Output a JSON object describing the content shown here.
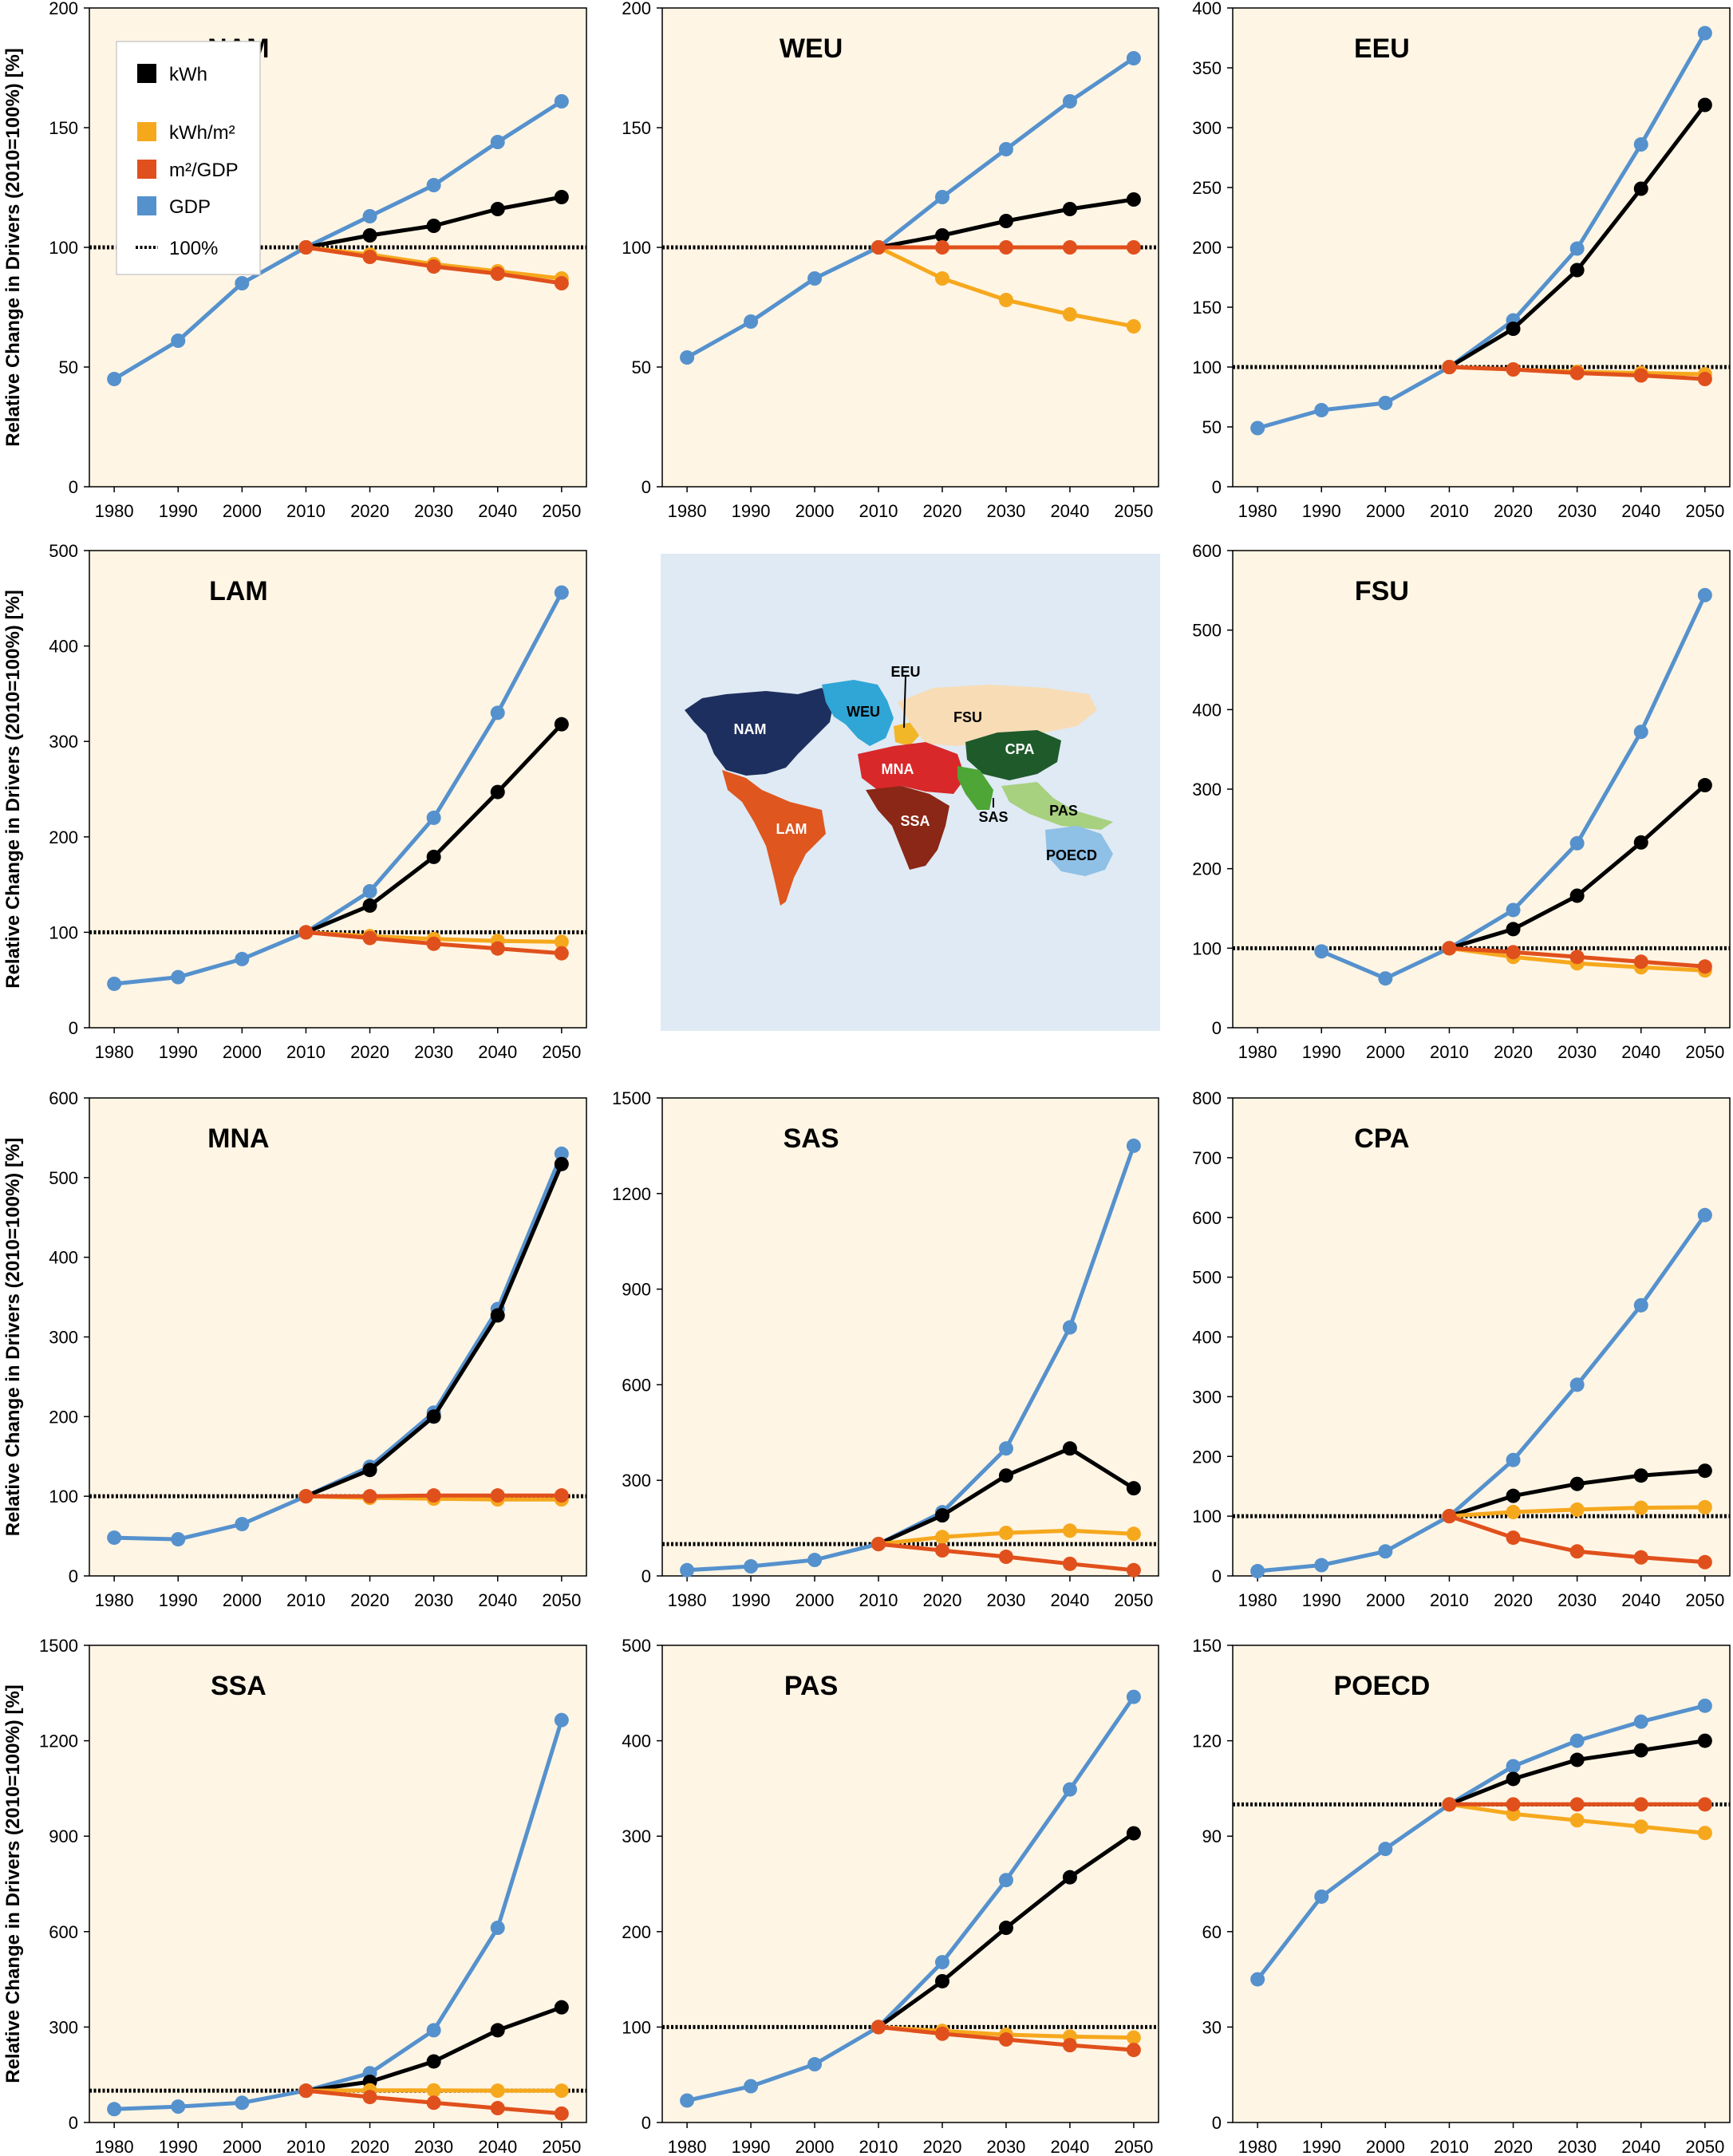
{
  "figure": {
    "ylabel": "Relative Change in Drivers (2010=100%) [%]",
    "legend": [
      {
        "label": "kWh",
        "color": "#000000",
        "kind": "marker"
      },
      {
        "label": "kWh/m²",
        "color": "#f6a81d",
        "kind": "marker"
      },
      {
        "label": "m²/GDP",
        "color": "#e0501c",
        "kind": "marker"
      },
      {
        "label": "GDP",
        "color": "#5591cd",
        "kind": "marker"
      },
      {
        "label": "100%",
        "color": "#000000",
        "kind": "dotted"
      }
    ],
    "colors": {
      "kWh": "#000000",
      "kWh_m2": "#f6a81d",
      "m2_GDP": "#e0501c",
      "GDP": "#5591cd",
      "plot_bg": "#fff5e4",
      "map_ocean": "#dfeaf4"
    },
    "map": {
      "regions": [
        {
          "label": "NAM",
          "color": "#1d2f5f",
          "text": "#ffffff"
        },
        {
          "label": "WEU",
          "color": "#2fa6d6",
          "text": "#000000"
        },
        {
          "label": "EEU",
          "color": "#f2b629",
          "text": "#000000"
        },
        {
          "label": "FSU",
          "color": "#f8dcb6",
          "text": "#000000"
        },
        {
          "label": "CPA",
          "color": "#1f5a2b",
          "text": "#ffffff"
        },
        {
          "label": "MNA",
          "color": "#d8282a",
          "text": "#ffffff"
        },
        {
          "label": "SAS",
          "color": "#4da635",
          "text": "#000000"
        },
        {
          "label": "PAS",
          "color": "#a7d07f",
          "text": "#000000"
        },
        {
          "label": "LAM",
          "color": "#df561f",
          "text": "#ffffff"
        },
        {
          "label": "SSA",
          "color": "#8a2716",
          "text": "#ffffff"
        },
        {
          "label": "POECD",
          "color": "#8fc0e6",
          "text": "#000000"
        }
      ]
    }
  },
  "chart_data": [
    {
      "type": "line",
      "title": "NAM",
      "ylim": [
        0,
        200
      ],
      "yticks": [
        0,
        50,
        100,
        150,
        200
      ],
      "categories": [
        1980,
        1990,
        2000,
        2010,
        2020,
        2030,
        2040,
        2050
      ],
      "series": [
        {
          "name": "GDP",
          "values": [
            45,
            61,
            85,
            100,
            113,
            126,
            144,
            161
          ]
        },
        {
          "name": "kWh",
          "values": [
            null,
            null,
            null,
            100,
            105,
            109,
            116,
            121
          ]
        },
        {
          "name": "kWh/m²",
          "values": [
            null,
            null,
            null,
            100,
            97,
            93,
            90,
            87
          ]
        },
        {
          "name": "m²/GDP",
          "values": [
            null,
            null,
            null,
            100,
            96,
            92,
            89,
            85
          ]
        }
      ]
    },
    {
      "type": "line",
      "title": "WEU",
      "ylim": [
        0,
        200
      ],
      "yticks": [
        0,
        50,
        100,
        150,
        200
      ],
      "categories": [
        1980,
        1990,
        2000,
        2010,
        2020,
        2030,
        2040,
        2050
      ],
      "series": [
        {
          "name": "GDP",
          "values": [
            54,
            69,
            87,
            100,
            121,
            141,
            161,
            179
          ]
        },
        {
          "name": "kWh",
          "values": [
            null,
            null,
            null,
            100,
            105,
            111,
            116,
            120
          ]
        },
        {
          "name": "kWh/m²",
          "values": [
            null,
            null,
            null,
            100,
            87,
            78,
            72,
            67
          ]
        },
        {
          "name": "m²/GDP",
          "values": [
            null,
            null,
            null,
            100,
            100,
            100,
            100,
            100
          ]
        }
      ]
    },
    {
      "type": "line",
      "title": "EEU",
      "ylim": [
        0,
        400
      ],
      "yticks": [
        0,
        50,
        100,
        150,
        200,
        250,
        300,
        350,
        400
      ],
      "categories": [
        1980,
        1990,
        2000,
        2010,
        2020,
        2030,
        2040,
        2050
      ],
      "series": [
        {
          "name": "GDP",
          "values": [
            49,
            64,
            70,
            100,
            139,
            199,
            286,
            379
          ]
        },
        {
          "name": "kWh",
          "values": [
            null,
            null,
            null,
            100,
            132,
            181,
            249,
            319
          ]
        },
        {
          "name": "kWh/m²",
          "values": [
            null,
            null,
            null,
            100,
            98,
            96,
            95,
            94
          ]
        },
        {
          "name": "m²/GDP",
          "values": [
            null,
            null,
            null,
            100,
            98,
            95,
            93,
            90
          ]
        }
      ]
    },
    {
      "type": "line",
      "title": "LAM",
      "ylim": [
        0,
        500
      ],
      "yticks": [
        0,
        100,
        200,
        300,
        400,
        500
      ],
      "categories": [
        1980,
        1990,
        2000,
        2010,
        2020,
        2030,
        2040,
        2050
      ],
      "series": [
        {
          "name": "GDP",
          "values": [
            46,
            53,
            72,
            100,
            143,
            220,
            330,
            456
          ]
        },
        {
          "name": "kWh",
          "values": [
            null,
            null,
            null,
            100,
            128,
            179,
            247,
            318
          ]
        },
        {
          "name": "kWh/m²",
          "values": [
            null,
            null,
            null,
            100,
            96,
            93,
            91,
            90
          ]
        },
        {
          "name": "m²/GDP",
          "values": [
            null,
            null,
            null,
            100,
            94,
            88,
            83,
            78
          ]
        }
      ]
    },
    {
      "type": "map",
      "title": ""
    },
    {
      "type": "line",
      "title": "FSU",
      "ylim": [
        0,
        600
      ],
      "yticks": [
        0,
        100,
        200,
        300,
        400,
        500,
        600
      ],
      "categories": [
        1980,
        1990,
        2000,
        2010,
        2020,
        2030,
        2040,
        2050
      ],
      "series": [
        {
          "name": "GDP",
          "values": [
            null,
            96,
            62,
            100,
            148,
            232,
            372,
            544
          ]
        },
        {
          "name": "kWh",
          "values": [
            null,
            null,
            null,
            100,
            124,
            166,
            233,
            305
          ]
        },
        {
          "name": "kWh/m²",
          "values": [
            null,
            null,
            null,
            100,
            89,
            81,
            76,
            72
          ]
        },
        {
          "name": "m²/GDP",
          "values": [
            null,
            null,
            null,
            100,
            95,
            89,
            83,
            77
          ]
        }
      ]
    },
    {
      "type": "line",
      "title": "MNA",
      "ylim": [
        0,
        600
      ],
      "yticks": [
        0,
        100,
        200,
        300,
        400,
        500,
        600
      ],
      "categories": [
        1980,
        1990,
        2000,
        2010,
        2020,
        2030,
        2040,
        2050
      ],
      "series": [
        {
          "name": "GDP",
          "values": [
            48,
            46,
            65,
            100,
            137,
            205,
            335,
            530
          ]
        },
        {
          "name": "kWh",
          "values": [
            null,
            null,
            null,
            100,
            133,
            200,
            327,
            517
          ]
        },
        {
          "name": "kWh/m²",
          "values": [
            null,
            null,
            null,
            100,
            98,
            97,
            96,
            96
          ]
        },
        {
          "name": "m²/GDP",
          "values": [
            null,
            null,
            null,
            100,
            100,
            101,
            101,
            101
          ]
        }
      ]
    },
    {
      "type": "line",
      "title": "SAS",
      "ylim": [
        0,
        1500
      ],
      "yticks": [
        0,
        300,
        600,
        900,
        1200,
        1500
      ],
      "categories": [
        1980,
        1990,
        2000,
        2010,
        2020,
        2030,
        2040,
        2050
      ],
      "series": [
        {
          "name": "GDP",
          "values": [
            18,
            30,
            50,
            100,
            200,
            400,
            780,
            1350
          ]
        },
        {
          "name": "kWh",
          "values": [
            null,
            null,
            null,
            100,
            190,
            315,
            400,
            275
          ]
        },
        {
          "name": "kWh/m²",
          "values": [
            null,
            null,
            null,
            100,
            122,
            135,
            142,
            132
          ]
        },
        {
          "name": "m²/GDP",
          "values": [
            null,
            null,
            null,
            100,
            80,
            60,
            38,
            18
          ]
        }
      ]
    },
    {
      "type": "line",
      "title": "CPA",
      "ylim": [
        0,
        800
      ],
      "yticks": [
        0,
        100,
        200,
        300,
        400,
        500,
        600,
        700,
        800
      ],
      "categories": [
        1980,
        1990,
        2000,
        2010,
        2020,
        2030,
        2040,
        2050
      ],
      "series": [
        {
          "name": "GDP",
          "values": [
            8,
            18,
            41,
            100,
            194,
            320,
            453,
            604
          ]
        },
        {
          "name": "kWh",
          "values": [
            null,
            null,
            null,
            100,
            134,
            154,
            168,
            176
          ]
        },
        {
          "name": "kWh/m²",
          "values": [
            null,
            null,
            null,
            100,
            107,
            111,
            114,
            115
          ]
        },
        {
          "name": "m²/GDP",
          "values": [
            null,
            null,
            null,
            100,
            64,
            41,
            31,
            23
          ]
        }
      ]
    },
    {
      "type": "line",
      "title": "SSA",
      "ylim": [
        0,
        1500
      ],
      "yticks": [
        0,
        300,
        600,
        900,
        1200,
        1500
      ],
      "categories": [
        1980,
        1990,
        2000,
        2010,
        2020,
        2030,
        2040,
        2050
      ],
      "series": [
        {
          "name": "GDP",
          "values": [
            42,
            50,
            62,
            100,
            155,
            290,
            612,
            1265
          ]
        },
        {
          "name": "kWh",
          "values": [
            null,
            null,
            null,
            100,
            128,
            192,
            290,
            362
          ]
        },
        {
          "name": "kWh/m²",
          "values": [
            null,
            null,
            null,
            100,
            101,
            101,
            100,
            100
          ]
        },
        {
          "name": "m²/GDP",
          "values": [
            null,
            null,
            null,
            100,
            80,
            62,
            45,
            28
          ]
        }
      ]
    },
    {
      "type": "line",
      "title": "PAS",
      "ylim": [
        0,
        500
      ],
      "yticks": [
        0,
        100,
        200,
        300,
        400,
        500
      ],
      "categories": [
        1980,
        1990,
        2000,
        2010,
        2020,
        2030,
        2040,
        2050
      ],
      "series": [
        {
          "name": "GDP",
          "values": [
            23,
            38,
            61,
            100,
            168,
            254,
            349,
            446
          ]
        },
        {
          "name": "kWh",
          "values": [
            null,
            null,
            null,
            100,
            148,
            204,
            257,
            303
          ]
        },
        {
          "name": "kWh/m²",
          "values": [
            null,
            null,
            null,
            100,
            96,
            92,
            90,
            89
          ]
        },
        {
          "name": "m²/GDP",
          "values": [
            null,
            null,
            null,
            100,
            93,
            87,
            81,
            76
          ]
        }
      ]
    },
    {
      "type": "line",
      "title": "POECD",
      "ylim": [
        0,
        150
      ],
      "yticks": [
        0,
        30,
        60,
        90,
        120,
        150
      ],
      "categories": [
        1980,
        1990,
        2000,
        2010,
        2020,
        2030,
        2040,
        2050
      ],
      "series": [
        {
          "name": "GDP",
          "values": [
            45,
            71,
            86,
            100,
            112,
            120,
            126,
            131
          ]
        },
        {
          "name": "kWh",
          "values": [
            null,
            null,
            null,
            100,
            108,
            114,
            117,
            120
          ]
        },
        {
          "name": "kWh/m²",
          "values": [
            null,
            null,
            null,
            100,
            97,
            95,
            93,
            91
          ]
        },
        {
          "name": "m²/GDP",
          "values": [
            null,
            null,
            null,
            100,
            100,
            100,
            100,
            100
          ]
        }
      ]
    }
  ]
}
